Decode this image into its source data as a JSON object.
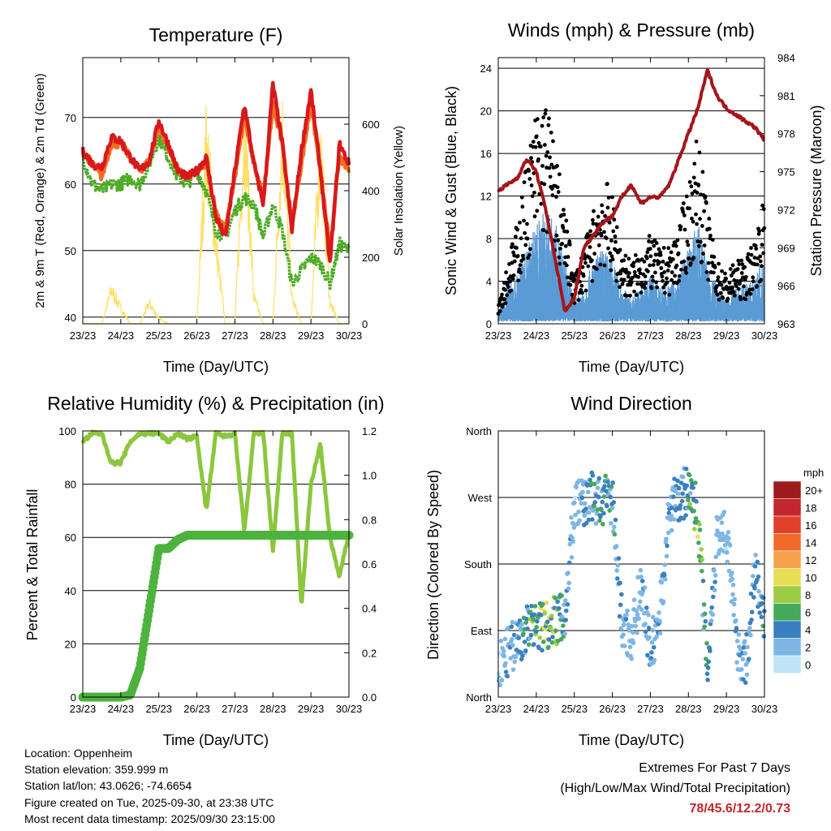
{
  "chart_data": [
    {
      "type": "line",
      "title": "Temperature (F)",
      "xlabel": "Time (Day/UTC)",
      "ylabel_left": "2m & 9m T (Red, Orange) & 2m Td (Green)",
      "ylabel_right": "Solar Insolation (Yellow)",
      "x_ticks": [
        "23/23",
        "24/23",
        "25/23",
        "26/23",
        "27/23",
        "28/23",
        "29/23",
        "30/23"
      ],
      "ylim": [
        39,
        79
      ],
      "y_ticks": [
        40,
        50,
        60,
        70
      ],
      "y2lim": [
        0,
        800
      ],
      "y2_ticks": [
        0,
        200,
        400,
        600
      ],
      "x": [
        0,
        0.25,
        0.5,
        0.75,
        1,
        1.25,
        1.5,
        1.75,
        2,
        2.25,
        2.5,
        2.75,
        3,
        3.25,
        3.5,
        3.75,
        4,
        4.25,
        4.5,
        4.75,
        5,
        5.25,
        5.5,
        5.75,
        6,
        6.25,
        6.5,
        6.75,
        7
      ],
      "series": [
        {
          "name": "2m T",
          "color": "#d7191c",
          "values": [
            65,
            63,
            62.5,
            67,
            66.5,
            64,
            62,
            63.5,
            69.5,
            66,
            62,
            61,
            62,
            64,
            55,
            52,
            62,
            72,
            63,
            57,
            75,
            66,
            53,
            65,
            74,
            62,
            48,
            66,
            63
          ]
        },
        {
          "name": "9m T",
          "color": "#f46d20",
          "values": [
            65,
            63,
            61,
            66,
            66,
            64,
            62,
            63.5,
            68.5,
            65.5,
            62,
            61,
            62,
            63,
            56,
            53,
            61,
            70,
            63,
            58,
            72,
            66,
            54,
            63,
            72,
            62,
            50,
            64,
            62
          ]
        },
        {
          "name": "2m Td",
          "color": "#4dac26",
          "values": [
            64,
            60,
            59,
            60,
            60,
            61,
            60,
            63,
            67,
            64,
            61,
            60,
            62,
            59,
            53,
            52,
            56,
            58,
            57,
            52,
            57,
            53,
            45,
            47,
            49,
            48,
            45,
            51,
            50
          ]
        },
        {
          "name": "Solar Insolation",
          "color": "#ffe066",
          "axis": "right",
          "values": [
            0,
            0,
            0,
            130,
            60,
            0,
            0,
            80,
            20,
            0,
            0,
            0,
            0,
            700,
            300,
            0,
            0,
            750,
            100,
            0,
            0,
            720,
            100,
            0,
            0,
            700,
            80,
            0,
            0
          ]
        }
      ]
    },
    {
      "type": "scatter",
      "title": "Winds (mph) & Pressure (mb)",
      "xlabel": "Time (Day/UTC)",
      "ylabel_left": "Sonic Wind & Gust (Blue, Black)",
      "ylabel_right": "Station Pressure (Maroon)",
      "x_ticks": [
        "23/23",
        "24/23",
        "25/23",
        "26/23",
        "27/23",
        "28/23",
        "29/23",
        "30/23"
      ],
      "ylim": [
        0,
        25
      ],
      "y_ticks": [
        0,
        4,
        8,
        12,
        16,
        20,
        24
      ],
      "y2lim": [
        963,
        984
      ],
      "y2_ticks": [
        963,
        966,
        969,
        972,
        975,
        978,
        981,
        984
      ],
      "x": [
        0,
        0.25,
        0.5,
        0.75,
        1,
        1.25,
        1.5,
        1.75,
        2,
        2.25,
        2.5,
        2.75,
        3,
        3.25,
        3.5,
        3.75,
        4,
        4.25,
        4.5,
        4.75,
        5,
        5.25,
        5.5,
        5.75,
        6,
        6.25,
        6.5,
        6.75,
        7
      ],
      "series": [
        {
          "name": "Sonic Wind",
          "color": "#5b9bd5",
          "values": [
            1,
            3,
            4,
            6,
            8,
            9,
            8,
            5,
            2,
            3,
            5,
            6,
            5,
            3,
            2,
            3,
            4,
            3,
            3,
            4,
            6,
            8,
            5,
            3,
            2,
            3,
            3,
            4,
            5
          ]
        },
        {
          "name": "Gust",
          "color": "#000000",
          "values": [
            2,
            5,
            8,
            13,
            17,
            18,
            14,
            9,
            4,
            6,
            9,
            12,
            10,
            6,
            5,
            6,
            7,
            6,
            6,
            8,
            11,
            15,
            9,
            5,
            4,
            5,
            5,
            7,
            10
          ]
        },
        {
          "name": "Station Pressure",
          "color": "#a4161a",
          "axis": "right",
          "values": [
            973.5,
            974,
            974.5,
            976,
            975,
            972,
            968,
            964,
            965,
            969,
            970,
            971,
            971.5,
            973,
            974,
            972.5,
            973,
            973,
            974,
            976,
            978,
            980,
            983,
            981,
            980,
            979.5,
            979,
            978.5,
            977.5
          ]
        }
      ]
    },
    {
      "type": "line",
      "title": "Relative Humidity (%) & Precipitation (in)",
      "xlabel": "Time (Day/UTC)",
      "ylabel_left": "Percent & Total Rainfall",
      "x_ticks": [
        "23/23",
        "24/23",
        "25/23",
        "26/23",
        "27/23",
        "28/23",
        "29/23",
        "30/23"
      ],
      "ylim": [
        0,
        100
      ],
      "y_ticks": [
        0,
        20,
        40,
        60,
        80,
        100
      ],
      "y2lim": [
        0,
        1.2
      ],
      "y2_ticks": [
        "0.0",
        "0.2",
        "0.4",
        "0.6",
        "0.8",
        "1.0",
        "1.2"
      ],
      "x": [
        0,
        0.25,
        0.5,
        0.75,
        1,
        1.25,
        1.5,
        1.75,
        2,
        2.25,
        2.5,
        2.75,
        3,
        3.25,
        3.5,
        3.75,
        4,
        4.25,
        4.5,
        4.75,
        5,
        5.25,
        5.5,
        5.75,
        6,
        6.25,
        6.5,
        6.75,
        7
      ],
      "series": [
        {
          "name": "Relative Humidity",
          "color": "#8cc63f",
          "values": [
            96,
            99,
            99,
            88,
            88,
            96,
            99,
            99,
            99,
            96,
            99,
            97,
            98,
            70,
            99,
            98,
            99,
            62,
            99,
            99,
            55,
            99,
            99,
            34,
            80,
            95,
            60,
            45,
            62
          ]
        },
        {
          "name": "Total Precipitation",
          "color": "#4db33d",
          "axis": "right",
          "values": [
            0,
            0,
            0,
            0,
            0,
            0.01,
            0.13,
            0.4,
            0.67,
            0.67,
            0.71,
            0.73,
            0.73,
            0.73,
            0.73,
            0.73,
            0.73,
            0.73,
            0.73,
            0.73,
            0.73,
            0.73,
            0.73,
            0.73,
            0.73,
            0.73,
            0.73,
            0.73,
            0.73
          ]
        }
      ]
    },
    {
      "type": "scatter",
      "title": "Wind Direction",
      "xlabel": "Time (Day/UTC)",
      "ylabel": "Direction (Colored By Speed)",
      "x_ticks": [
        "23/23",
        "24/23",
        "25/23",
        "26/23",
        "27/23",
        "28/23",
        "29/23",
        "30/23"
      ],
      "y_ticks": [
        "North",
        "East",
        "South",
        "West",
        "North"
      ],
      "ylim": [
        0,
        360
      ],
      "x": [
        0,
        0.25,
        0.5,
        0.75,
        1,
        1.25,
        1.5,
        1.75,
        2,
        2.25,
        2.5,
        2.75,
        3,
        3.25,
        3.5,
        3.75,
        4,
        4.25,
        4.5,
        4.75,
        5,
        5.25,
        5.5,
        5.75,
        6,
        6.25,
        6.5,
        6.75,
        7
      ],
      "series": [
        {
          "name": "Direction",
          "values": [
            40,
            60,
            75,
            90,
            95,
            100,
            105,
            110,
            260,
            265,
            270,
            262,
            270,
            100,
            80,
            150,
            60,
            110,
            250,
            270,
            280,
            250,
            40,
            220,
            230,
            80,
            40,
            170,
            100
          ]
        },
        {
          "name": "Speed",
          "values": [
            1,
            3,
            4,
            6,
            8,
            9,
            8,
            5,
            2,
            3,
            5,
            6,
            5,
            3,
            2,
            3,
            4,
            3,
            3,
            4,
            6,
            8,
            5,
            3,
            2,
            3,
            3,
            4,
            5
          ]
        }
      ],
      "legend": {
        "title": "mph",
        "labels": [
          "20+",
          "18",
          "16",
          "14",
          "12",
          "10",
          "8",
          "6",
          "4",
          "2",
          "0"
        ],
        "colors": [
          "#9e1b1b",
          "#c1272d",
          "#e1402a",
          "#f26a2a",
          "#f7a24a",
          "#e8de55",
          "#9ccc44",
          "#46a85a",
          "#3a80c0",
          "#7eb6e4",
          "#bfe4f7"
        ]
      }
    }
  ],
  "station_info": [
    "Location: Oppenheim",
    "Station elevation: 359.999 m",
    "Station lat/lon: 43.0626; -74.6654",
    "Figure created on Tue, 2025-09-30, at 23:38 UTC",
    "Most recent data timestamp: 2025/09/30 23:15:00"
  ],
  "extremes": {
    "title": "Extremes For Past 7 Days",
    "subtitle": "(High/Low/Max Wind/Total Precipitation)",
    "values": "78/45.6/12.2/0.73"
  }
}
